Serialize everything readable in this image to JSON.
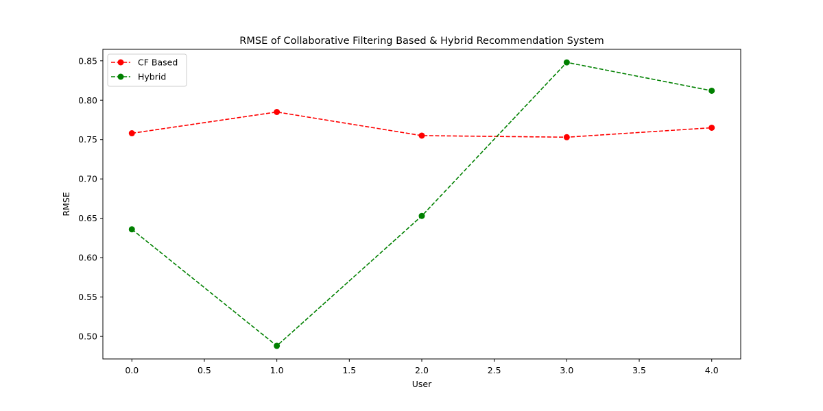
{
  "chart_data": {
    "type": "line",
    "title": "RMSE of Collaborative Filtering Based & Hybrid Recommendation System",
    "xlabel": "User",
    "ylabel": "RMSE",
    "x": [
      0,
      1,
      2,
      3,
      4
    ],
    "series": [
      {
        "name": "CF Based",
        "values": [
          0.758,
          0.785,
          0.755,
          0.753,
          0.765
        ],
        "color": "#ff0000",
        "line_style": "dashed",
        "marker": "circle"
      },
      {
        "name": "Hybrid",
        "values": [
          0.636,
          0.488,
          0.653,
          0.848,
          0.812
        ],
        "color": "#008000",
        "line_style": "dashed",
        "marker": "circle"
      }
    ],
    "xlim": [
      -0.2,
      4.2
    ],
    "ylim": [
      0.4714,
      0.8646
    ],
    "xticks": [
      "0.0",
      "0.5",
      "1.0",
      "1.5",
      "2.0",
      "2.5",
      "3.0",
      "3.5",
      "4.0"
    ],
    "yticks": [
      "0.50",
      "0.55",
      "0.60",
      "0.65",
      "0.70",
      "0.75",
      "0.80",
      "0.85"
    ],
    "grid": false,
    "legend_position": "top-left"
  }
}
